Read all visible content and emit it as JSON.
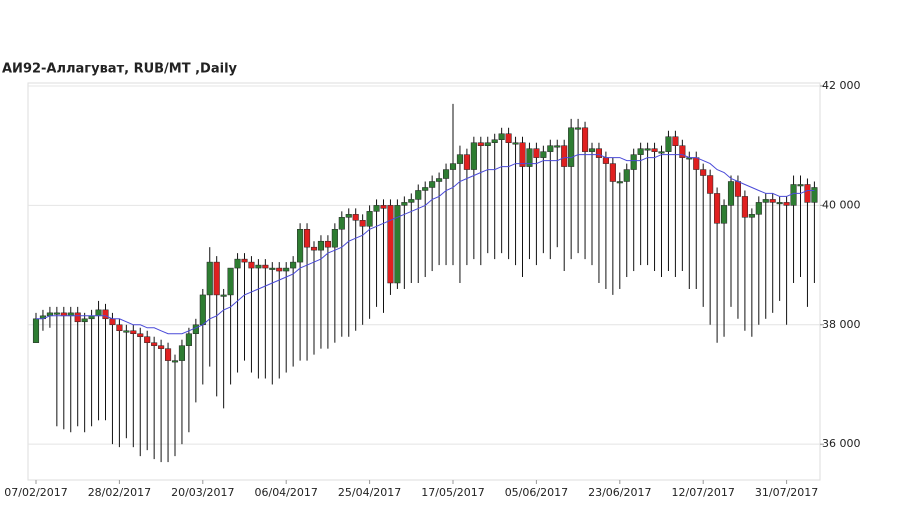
{
  "chart_data": {
    "type": "candlestick",
    "title": "АИ92-Аллагуват,  RUB/MT ,Daily",
    "categories": [
      "07/02/2017",
      null,
      null,
      null,
      null,
      null,
      null,
      null,
      null,
      null,
      null,
      null,
      "28/02/2017",
      null,
      null,
      null,
      null,
      null,
      null,
      null,
      null,
      null,
      null,
      null,
      "20/03/2017",
      null,
      null,
      null,
      null,
      null,
      null,
      null,
      null,
      null,
      null,
      null,
      "06/04/2017",
      null,
      null,
      null,
      null,
      null,
      null,
      null,
      null,
      null,
      null,
      null,
      "25/04/2017",
      null,
      null,
      null,
      null,
      null,
      null,
      null,
      null,
      null,
      null,
      null,
      "17/05/2017",
      null,
      null,
      null,
      null,
      null,
      null,
      null,
      null,
      null,
      null,
      null,
      "05/06/2017",
      null,
      null,
      null,
      null,
      null,
      null,
      null,
      null,
      null,
      null,
      null,
      "23/06/2017",
      null,
      null,
      null,
      null,
      null,
      null,
      null,
      null,
      null,
      null,
      null,
      "12/07/2017",
      null,
      null,
      null,
      null,
      null,
      null,
      null,
      null,
      null,
      null,
      null,
      "31/07/2017",
      null,
      null,
      null,
      null
    ],
    "open": [
      37700,
      38100,
      38150,
      38200,
      38200,
      38150,
      38200,
      38050,
      38100,
      38150,
      38250,
      38100,
      38000,
      37900,
      37900,
      37850,
      37800,
      37700,
      37650,
      37600,
      37400,
      37400,
      37650,
      37850,
      38000,
      38500,
      39050,
      38500,
      38500,
      38950,
      39100,
      39050,
      38950,
      39000,
      38950,
      38950,
      38900,
      38950,
      39050,
      39600,
      39300,
      39250,
      39400,
      39300,
      39600,
      39800,
      39850,
      39750,
      39650,
      39900,
      40000,
      40000,
      38700,
      40000,
      40050,
      40100,
      40250,
      40300,
      40400,
      40450,
      40600,
      40700,
      40850,
      40600,
      41050,
      41000,
      41050,
      41100,
      41200,
      41050,
      41050,
      40650,
      40950,
      40800,
      40900,
      41000,
      41000,
      40650,
      41300,
      41300,
      40900,
      40950,
      40800,
      40700,
      40400,
      40400,
      40600,
      40850,
      40950,
      40950,
      40900,
      40900,
      41150,
      41000,
      40800,
      40800,
      40600,
      40500,
      40200,
      39700,
      40000,
      40400,
      40150,
      39800,
      39850,
      40050,
      40100,
      40050,
      40050,
      40000,
      40350,
      40350,
      40050
    ],
    "high": [
      38200,
      38250,
      38300,
      38300,
      38300,
      38300,
      38300,
      38200,
      38250,
      38400,
      38350,
      38200,
      38100,
      38000,
      38000,
      37950,
      37900,
      37800,
      37750,
      37700,
      37500,
      37750,
      37950,
      38100,
      38600,
      39300,
      39150,
      38600,
      38950,
      39200,
      39200,
      39150,
      39100,
      39100,
      39050,
      39050,
      39050,
      39150,
      39700,
      39700,
      39400,
      39500,
      39500,
      39700,
      39900,
      39950,
      39950,
      39850,
      40000,
      40100,
      40100,
      40100,
      40100,
      40150,
      40200,
      40350,
      40400,
      40500,
      40550,
      40700,
      41700,
      41000,
      40950,
      41150,
      41150,
      41150,
      41200,
      41300,
      41300,
      41150,
      41150,
      41050,
      41050,
      41000,
      41100,
      41100,
      41100,
      41450,
      41450,
      41400,
      41050,
      41050,
      40900,
      40800,
      40550,
      40700,
      40950,
      41050,
      41050,
      41050,
      41000,
      41250,
      41250,
      41100,
      40900,
      40900,
      40700,
      40600,
      40300,
      40100,
      40500,
      40500,
      40250,
      39950,
      40150,
      40200,
      40200,
      40150,
      40150,
      40500,
      40500,
      40450,
      40400
    ],
    "low": [
      37700,
      37900,
      37950,
      36300,
      36250,
      36200,
      36300,
      36200,
      36300,
      36400,
      36400,
      36000,
      35950,
      36100,
      35950,
      35800,
      35900,
      35750,
      35700,
      35700,
      35800,
      36000,
      36200,
      36700,
      37000,
      37300,
      36800,
      36600,
      37000,
      37200,
      37400,
      37200,
      37100,
      37100,
      37000,
      37100,
      37200,
      37300,
      37400,
      37400,
      37500,
      37600,
      37600,
      37700,
      37800,
      37800,
      37900,
      38000,
      38100,
      38300,
      38200,
      38500,
      38600,
      38600,
      38700,
      38700,
      38800,
      38900,
      39000,
      39000,
      39000,
      38700,
      39000,
      39100,
      39000,
      39200,
      39100,
      39200,
      39100,
      39000,
      38800,
      39100,
      39000,
      39200,
      39100,
      39300,
      38900,
      39100,
      39200,
      39100,
      39000,
      38700,
      38600,
      38500,
      38600,
      38800,
      38900,
      39000,
      39000,
      38900,
      38800,
      38900,
      38800,
      38900,
      38600,
      38600,
      38300,
      38000,
      37700,
      37800,
      38300,
      38100,
      37900,
      37800,
      38000,
      38100,
      38200,
      38400,
      38000,
      38700,
      38800,
      38300,
      38700
    ],
    "close": [
      38100,
      38150,
      38200,
      38200,
      38150,
      38200,
      38050,
      38100,
      38150,
      38250,
      38100,
      38000,
      37900,
      37900,
      37850,
      37800,
      37700,
      37650,
      37600,
      37400,
      37400,
      37650,
      37850,
      38000,
      38500,
      39050,
      38500,
      38500,
      38950,
      39100,
      39050,
      38950,
      39000,
      38950,
      38950,
      38900,
      38950,
      39050,
      39600,
      39300,
      39250,
      39400,
      39300,
      39600,
      39800,
      39850,
      39750,
      39650,
      39900,
      40000,
      39950,
      38700,
      40000,
      40050,
      40100,
      40250,
      40300,
      40400,
      40450,
      40600,
      40700,
      40850,
      40600,
      41050,
      41000,
      41050,
      41100,
      41200,
      41050,
      41050,
      40650,
      40950,
      40800,
      40900,
      41000,
      41000,
      40650,
      41300,
      41300,
      40900,
      40950,
      40800,
      40700,
      40400,
      40400,
      40600,
      40850,
      40950,
      40950,
      40900,
      40900,
      41150,
      41000,
      40800,
      40800,
      40600,
      40500,
      40200,
      39700,
      40000,
      40400,
      40150,
      39800,
      39850,
      40050,
      40100,
      40050,
      40050,
      40000,
      40350,
      40350,
      40050,
      40300
    ],
    "ma": [
      38100,
      38100,
      38150,
      38150,
      38150,
      38150,
      38150,
      38150,
      38150,
      38150,
      38150,
      38100,
      38100,
      38050,
      38000,
      38000,
      37950,
      37950,
      37900,
      37850,
      37850,
      37850,
      37900,
      37950,
      38000,
      38100,
      38150,
      38250,
      38300,
      38400,
      38500,
      38550,
      38600,
      38650,
      38700,
      38750,
      38800,
      38850,
      38950,
      39000,
      39050,
      39100,
      39200,
      39250,
      39300,
      39400,
      39450,
      39500,
      39600,
      39650,
      39700,
      39750,
      39800,
      39850,
      39900,
      39950,
      40000,
      40100,
      40150,
      40250,
      40300,
      40400,
      40450,
      40500,
      40550,
      40600,
      40600,
      40650,
      40650,
      40700,
      40700,
      40700,
      40700,
      40750,
      40750,
      40750,
      40800,
      40800,
      40850,
      40850,
      40850,
      40850,
      40800,
      40800,
      40800,
      40750,
      40750,
      40750,
      40800,
      40800,
      40850,
      40850,
      40850,
      40850,
      40800,
      40800,
      40750,
      40700,
      40600,
      40550,
      40450,
      40400,
      40350,
      40300,
      40250,
      40200,
      40200,
      40150,
      40150,
      40200,
      40200,
      40250,
      40250
    ],
    "up_color": "#2e7d32",
    "down_color": "#e02020",
    "ma_color": "#4a4ad8",
    "ylim": [
      35400,
      42050
    ],
    "yticks": [
      {
        "value": 36000,
        "label": "36 000"
      },
      {
        "value": 38000,
        "label": "38 000"
      },
      {
        "value": 40000,
        "label": "40 000"
      },
      {
        "value": 42000,
        "label": "42 000"
      }
    ],
    "grid": true
  }
}
